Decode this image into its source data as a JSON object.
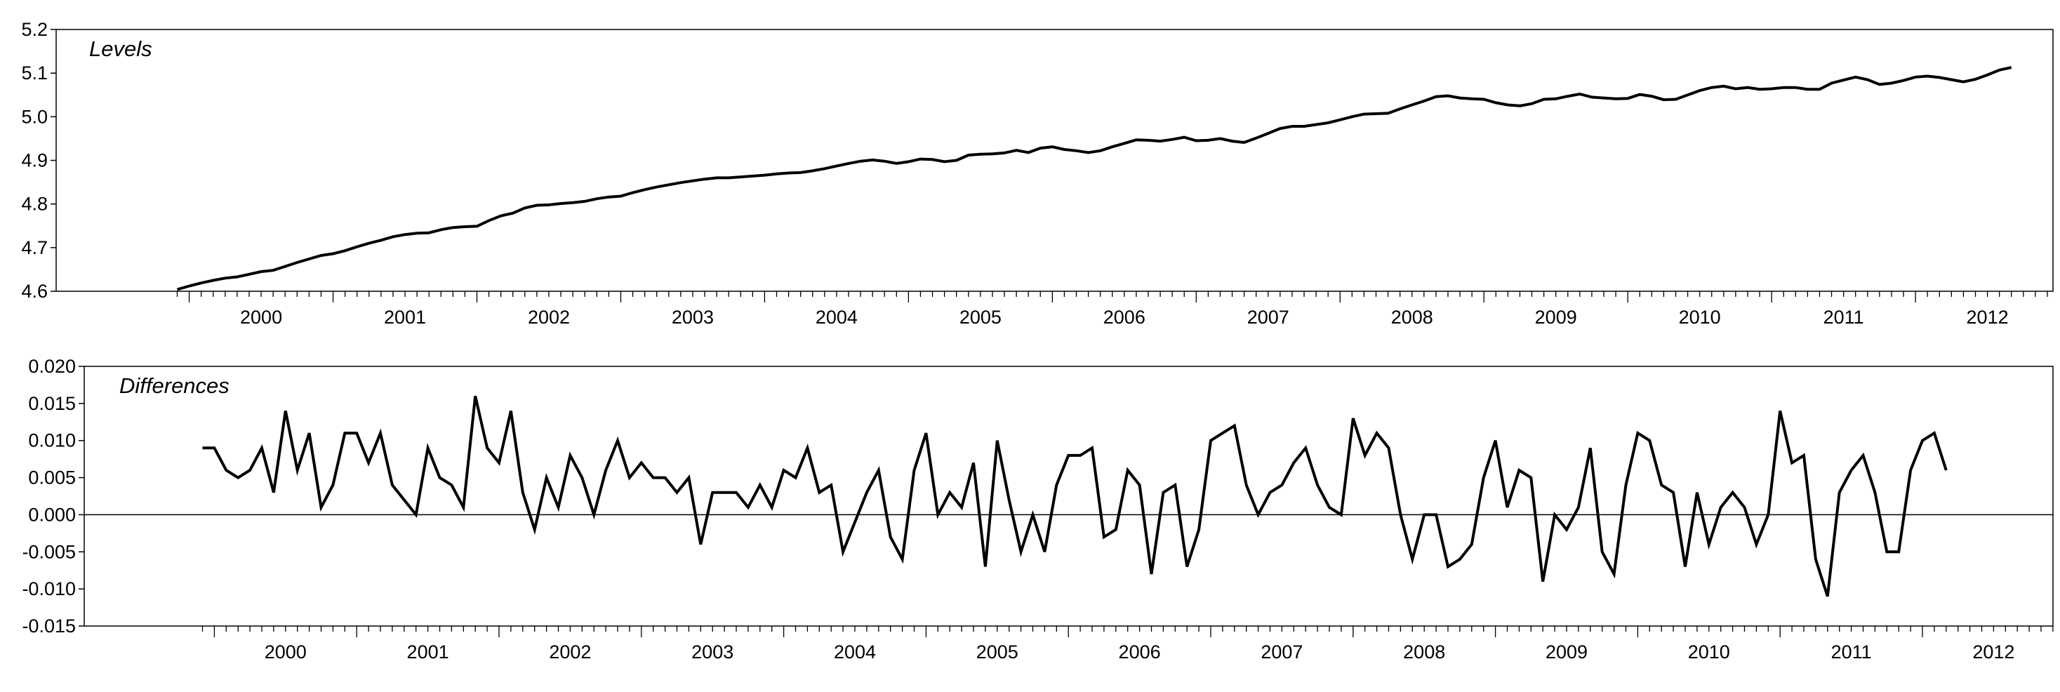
{
  "chart_data": [
    {
      "type": "line",
      "title": "Levels",
      "xlabel": "",
      "ylabel": "",
      "ylim": [
        4.6,
        5.2
      ],
      "yticks": [
        "4.6",
        "4.7",
        "4.8",
        "4.9",
        "5.0",
        "5.1",
        "5.2"
      ],
      "xticks": [
        "2000",
        "2001",
        "2002",
        "2003",
        "2004",
        "2005",
        "2006",
        "2007",
        "2008",
        "2009",
        "2010",
        "2011",
        "2012"
      ],
      "x_start": "1999-12",
      "x_end": "2012-12",
      "frequency": "monthly",
      "grid": false,
      "series": [
        {
          "values": [
            4.604,
            4.612,
            4.619,
            4.625,
            4.63,
            4.633,
            4.639,
            4.645,
            4.648,
            4.657,
            4.666,
            4.674,
            4.682,
            4.686,
            4.693,
            4.702,
            4.71,
            4.717,
            4.725,
            4.73,
            4.733,
            4.734,
            4.741,
            4.746,
            4.748,
            4.749,
            4.762,
            4.773,
            4.779,
            4.791,
            4.797,
            4.798,
            4.801,
            4.803,
            4.806,
            4.812,
            4.816,
            4.818,
            4.826,
            4.833,
            4.839,
            4.844,
            4.849,
            4.853,
            4.857,
            4.86,
            4.86,
            4.862,
            4.864,
            4.866,
            4.869,
            4.871,
            4.872,
            4.876,
            4.881,
            4.887,
            4.893,
            4.898,
            4.901,
            4.898,
            4.893,
            4.897,
            4.903,
            4.902,
            4.897,
            4.9,
            4.912,
            4.914,
            4.915,
            4.917,
            4.923,
            4.918,
            4.928,
            4.931,
            4.925,
            4.922,
            4.918,
            4.922,
            4.931,
            4.939,
            4.947,
            4.946,
            4.944,
            4.948,
            4.953,
            4.945,
            4.946,
            4.95,
            4.944,
            4.941,
            4.951,
            4.962,
            4.973,
            4.978,
            4.978,
            4.982,
            4.986,
            4.993,
            5.0,
            5.006,
            5.007,
            5.008,
            5.018,
            5.027,
            5.036,
            5.046,
            5.048,
            5.043,
            5.041,
            5.04,
            5.032,
            5.027,
            5.025,
            5.03,
            5.04,
            5.041,
            5.047,
            5.052,
            5.045,
            5.043,
            5.041,
            5.042,
            5.051,
            5.047,
            5.039,
            5.04,
            5.05,
            5.06,
            5.067,
            5.07,
            5.064,
            5.067,
            5.063,
            5.064,
            5.067,
            5.067,
            5.063,
            5.063,
            5.077,
            5.084,
            5.091,
            5.085,
            5.074,
            5.077,
            5.083,
            5.091,
            5.093,
            5.09,
            5.085,
            5.08,
            5.086,
            5.096,
            5.107,
            5.113
          ]
        }
      ]
    },
    {
      "type": "line",
      "title": "Differences",
      "xlabel": "",
      "ylabel": "",
      "ylim": [
        -0.015,
        0.02
      ],
      "yticks": [
        "-0.015",
        "-0.010",
        "-0.005",
        "0.000",
        "0.005",
        "0.010",
        "0.015",
        "0.020"
      ],
      "xticks": [
        "2000",
        "2001",
        "2002",
        "2003",
        "2004",
        "2005",
        "2006",
        "2007",
        "2008",
        "2009",
        "2010",
        "2011",
        "2012"
      ],
      "x_start": "1999-12",
      "x_end": "2012-12",
      "frequency": "monthly",
      "reference_line": 0.0,
      "grid": false,
      "series": [
        {
          "values": [
            0.009,
            0.009,
            0.006,
            0.005,
            0.006,
            0.009,
            0.003,
            0.014,
            0.006,
            0.011,
            0.001,
            0.004,
            0.011,
            0.011,
            0.007,
            0.011,
            0.004,
            0.002,
            0.0,
            0.009,
            0.005,
            0.004,
            0.001,
            0.016,
            0.009,
            0.007,
            0.014,
            0.003,
            -0.002,
            0.005,
            0.001,
            0.008,
            0.005,
            0.0,
            0.006,
            0.01,
            0.005,
            0.007,
            0.005,
            0.005,
            0.003,
            0.005,
            -0.004,
            0.003,
            0.003,
            0.003,
            0.001,
            0.004,
            0.001,
            0.006,
            0.005,
            0.009,
            0.003,
            0.004,
            -0.005,
            -0.001,
            0.003,
            0.006,
            -0.003,
            -0.006,
            0.006,
            0.011,
            0.0,
            0.003,
            0.001,
            0.007,
            -0.007,
            0.01,
            0.002,
            -0.005,
            0.0,
            -0.005,
            0.004,
            0.008,
            0.008,
            0.009,
            -0.003,
            -0.002,
            0.006,
            0.004,
            -0.008,
            0.003,
            0.004,
            -0.007,
            -0.002,
            0.01,
            0.011,
            0.012,
            0.004,
            0.0,
            0.003,
            0.004,
            0.007,
            0.009,
            0.004,
            0.001,
            0.0,
            0.013,
            0.008,
            0.011,
            0.009,
            0.0,
            -0.006,
            0.0,
            0.0,
            -0.007,
            -0.006,
            -0.004,
            0.005,
            0.01,
            0.001,
            0.006,
            0.005,
            -0.009,
            0.0,
            -0.002,
            0.001,
            0.009,
            -0.005,
            -0.008,
            0.004,
            0.011,
            0.01,
            0.004,
            0.003,
            -0.007,
            0.003,
            -0.004,
            0.001,
            0.003,
            0.001,
            -0.004,
            0.0,
            0.014,
            0.007,
            0.008,
            -0.006,
            -0.011,
            0.003,
            0.006,
            0.008,
            0.003,
            -0.005,
            -0.005,
            0.006,
            0.01,
            0.011,
            0.006
          ]
        }
      ]
    }
  ]
}
